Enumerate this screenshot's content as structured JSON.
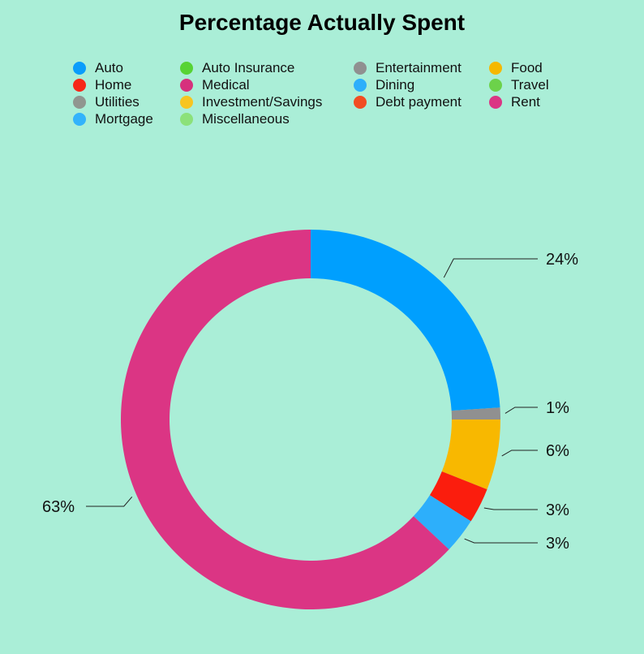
{
  "chart_data": {
    "type": "pie",
    "title": "Percentage Actually Spent",
    "donut": true,
    "legend": [
      {
        "name": "Auto",
        "color": "#0a9dfb"
      },
      {
        "name": "Home",
        "color": "#f62718"
      },
      {
        "name": "Utilities",
        "color": "#909690"
      },
      {
        "name": "Mortgage",
        "color": "#33b3fb"
      },
      {
        "name": "Auto Insurance",
        "color": "#57d334"
      },
      {
        "name": "Medical",
        "color": "#d6317d"
      },
      {
        "name": "Investment/Savings",
        "color": "#f7c521"
      },
      {
        "name": "Miscellaneous",
        "color": "#8ce17a"
      },
      {
        "name": "Entertainment",
        "color": "#909090"
      },
      {
        "name": "Dining",
        "color": "#2daffb"
      },
      {
        "name": "Debt payment",
        "color": "#f24d22"
      },
      {
        "name": "Food",
        "color": "#f5b800"
      },
      {
        "name": "Travel",
        "color": "#6cd24a"
      },
      {
        "name": "Rent",
        "color": "#db3584"
      }
    ],
    "slices": [
      {
        "name": "Auto",
        "value": 24,
        "label": "24%",
        "color": "#009ffe"
      },
      {
        "name": "Entertainment",
        "value": 1,
        "label": "1%",
        "color": "#909090"
      },
      {
        "name": "Food",
        "value": 6,
        "label": "6%",
        "color": "#f8b800"
      },
      {
        "name": "Home",
        "value": 3,
        "label": "3%",
        "color": "#fb1d0d"
      },
      {
        "name": "Dining",
        "value": 3,
        "label": "3%",
        "color": "#2daffb"
      },
      {
        "name": "Rent",
        "value": 63,
        "label": "63%",
        "color": "#db3584"
      }
    ]
  }
}
